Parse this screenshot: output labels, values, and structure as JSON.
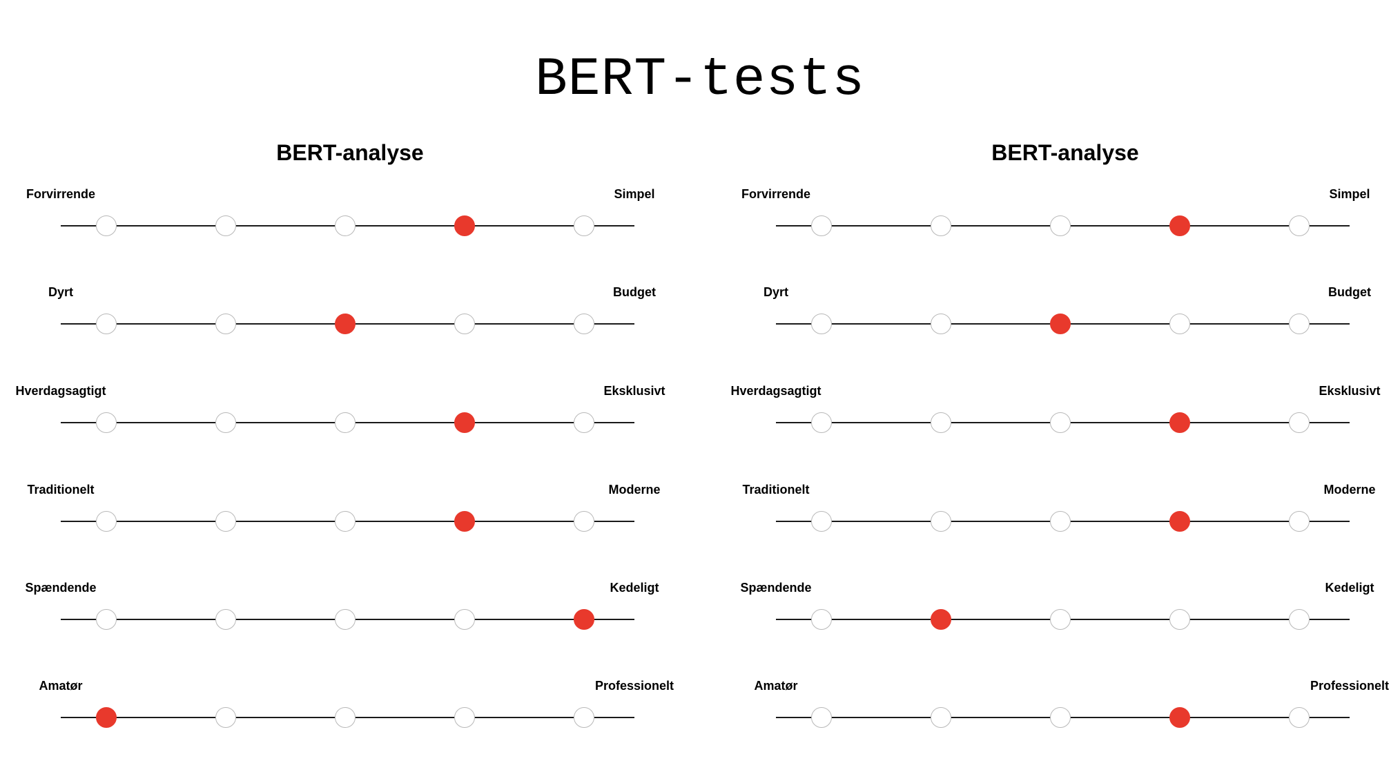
{
  "title": "BERT-tests",
  "colors": {
    "selected": "#e8392c",
    "track": "#1a1a1a",
    "dot_border": "#b8b8b8"
  },
  "panels": [
    {
      "title": "BERT-analyse",
      "scales": [
        {
          "left": "Forvirrende",
          "right": "Simpel",
          "selected": 4
        },
        {
          "left": "Dyrt",
          "right": "Budget",
          "selected": 3
        },
        {
          "left": "Hverdagsagtigt",
          "right": "Eksklusivt",
          "selected": 4
        },
        {
          "left": "Traditionelt",
          "right": "Moderne",
          "selected": 4
        },
        {
          "left": "Spændende",
          "right": "Kedeligt",
          "selected": 5
        },
        {
          "left": "Amatør",
          "right": "Professionelt",
          "selected": 1
        }
      ]
    },
    {
      "title": "BERT-analyse",
      "scales": [
        {
          "left": "Forvirrende",
          "right": "Simpel",
          "selected": 4
        },
        {
          "left": "Dyrt",
          "right": "Budget",
          "selected": 3
        },
        {
          "left": "Hverdagsagtigt",
          "right": "Eksklusivt",
          "selected": 4
        },
        {
          "left": "Traditionelt",
          "right": "Moderne",
          "selected": 4
        },
        {
          "left": "Spændende",
          "right": "Kedeligt",
          "selected": 2
        },
        {
          "left": "Amatør",
          "right": "Professionelt",
          "selected": 4
        }
      ]
    }
  ]
}
